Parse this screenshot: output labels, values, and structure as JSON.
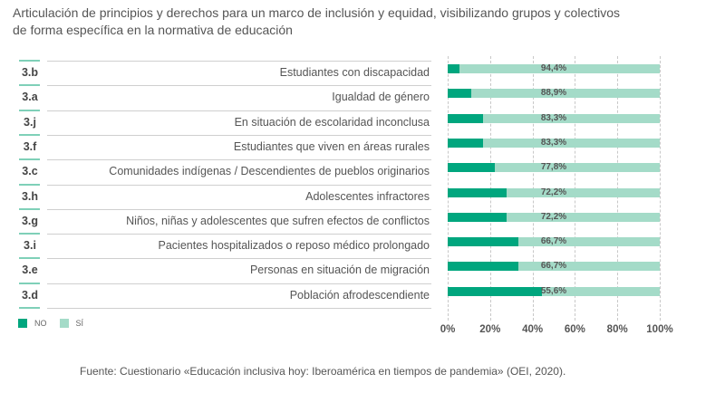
{
  "title_lines": [
    "Articulación de principios y derechos para un marco de inclusión y equidad, visibilizando grupos y colectivos",
    "de forma específica en la normativa de educación"
  ],
  "colors": {
    "no": "#00a67e",
    "si": "#a4dbc8",
    "code_line": "#7fd0b8"
  },
  "legend": [
    {
      "label": "NO",
      "color": "#00a67e"
    },
    {
      "label": "SÍ",
      "color": "#a4dbc8"
    }
  ],
  "source": "Fuente: Cuestionario «Educación inclusiva hoy: Iberoamérica en tiempos de pandemia» (OEI, 2020).",
  "chart_data": {
    "type": "bar",
    "orientation": "horizontal",
    "stacked": true,
    "title": "Articulación de principios y derechos para un marco de inclusión y equidad, visibilizando grupos y colectivos de forma específica en la normativa de educación",
    "codes": [
      "3.b",
      "3.a",
      "3.j",
      "3.f",
      "3.c",
      "3.h",
      "3.g",
      "3.i",
      "3.e",
      "3.d"
    ],
    "categories": [
      "Estudiantes con discapacidad",
      "Igualdad de género",
      "En situación de escolaridad inconclusa",
      "Estudiantes que viven en áreas rurales",
      "Comunidades indígenas / Descendientes de pueblos originarios",
      "Adolescentes infractores",
      "Niños, niñas y adolescentes que sufren efectos de conflictos",
      "Pacientes hospitalizados o reposo médico prolongado",
      "Personas en situación de migración",
      "Población afrodescendiente"
    ],
    "series": [
      {
        "name": "NO",
        "values": [
          5.6,
          11.1,
          16.7,
          16.7,
          22.2,
          27.8,
          27.8,
          33.3,
          33.3,
          44.4
        ]
      },
      {
        "name": "SÍ",
        "values": [
          94.4,
          88.9,
          83.3,
          83.3,
          77.8,
          72.2,
          72.2,
          66.7,
          66.7,
          55.6
        ]
      }
    ],
    "data_labels": [
      "94,4%",
      "88,9%",
      "83,3%",
      "83,3%",
      "77,8%",
      "72,2%",
      "72,2%",
      "66,7%",
      "66,7%",
      "55,6%"
    ],
    "xlabel": "",
    "ylabel": "",
    "xlim": [
      0,
      100
    ],
    "xticks": [
      "0%",
      "20%",
      "40%",
      "60%",
      "80%",
      "100%"
    ],
    "grid": "vertical dashed",
    "legend_position": "bottom-left"
  }
}
